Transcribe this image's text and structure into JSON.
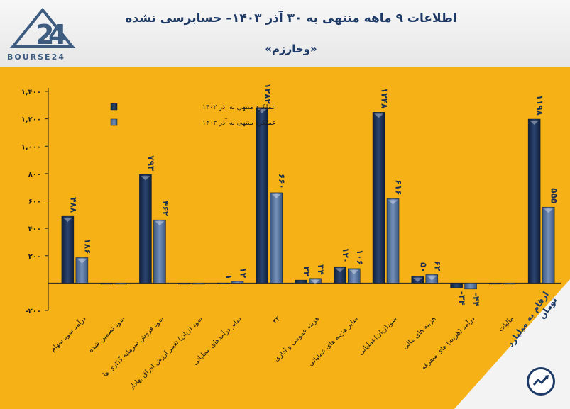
{
  "header": {
    "title": "اطلاعات ۹ ماهه منتهی به ۳۰ آذر ۱۴۰۳– حسابرسی نشده",
    "subtitle": "«وخارزم»"
  },
  "logo": {
    "text": "BOURSE24",
    "icon": "bourse24-logo"
  },
  "footer": {
    "note": "ارقام به میلیارد تومان",
    "icon": "trend-chart-icon"
  },
  "colors": {
    "background": "#f6b117",
    "series_1402": "#1d2f4f",
    "series_1403": "#4d6b94",
    "title": "#1d3a66"
  },
  "chart_data": {
    "type": "bar",
    "ylim": [
      -200,
      1400
    ],
    "yticks": [
      -200,
      200,
      400,
      600,
      800,
      1000,
      1200,
      1400
    ],
    "ytick_labels": [
      "-۲۰۰",
      "۲۰۰",
      "۴۰۰",
      "۶۰۰",
      "۸۰۰",
      "۱,۰۰۰",
      "۱,۲۰۰",
      "۱,۴۰۰"
    ],
    "categories": [
      "درآمد سود سهام",
      "سود تضمین شده",
      "سود فروش سرمایه گذاری ها",
      "سود (زیان) تغییر ارزش اوراق بهادار",
      "سایر درآمدهای عملیاتی",
      "۴۳",
      "هزینه عمومی و اداری",
      "سایر هزینه های عملیاتی",
      "سود(زیان)عملیاتی",
      "هزینه های مالی",
      "درآمد (هزینه) های متفرقه",
      "مالیات",
      "سود(زیان) خالص"
    ],
    "series": [
      {
        "name": "عملکرد منتهی به آذر ۱۴۰۲",
        "values": [
          488,
          0,
          793,
          0,
          1,
          1282,
          22,
          120,
          1248,
          50,
          -34,
          0,
          1198
        ],
        "labels": [
          "۴۸۸",
          "",
          "۷۹۳",
          "",
          "۱",
          "۱۲۸۲",
          "۲۲",
          "۱۲۰",
          "۱۲۴۸",
          "۵۰",
          "-۳۴",
          "",
          "۱۱۹۸"
        ]
      },
      {
        "name": "عملکرد منتهی به آذر ۱۴۰۳",
        "values": [
          186,
          0,
          462,
          0,
          12,
          660,
          34,
          106,
          616,
          62,
          -44,
          0,
          555
        ],
        "labels": [
          "۱۸۶",
          "",
          "۴۶۲",
          "",
          "۱۲",
          "۶۶۰",
          "۳۴",
          "۱۰۶",
          "۶۱۶",
          "۶۲",
          "-۴۴",
          "",
          "۵۵۵"
        ]
      }
    ]
  }
}
